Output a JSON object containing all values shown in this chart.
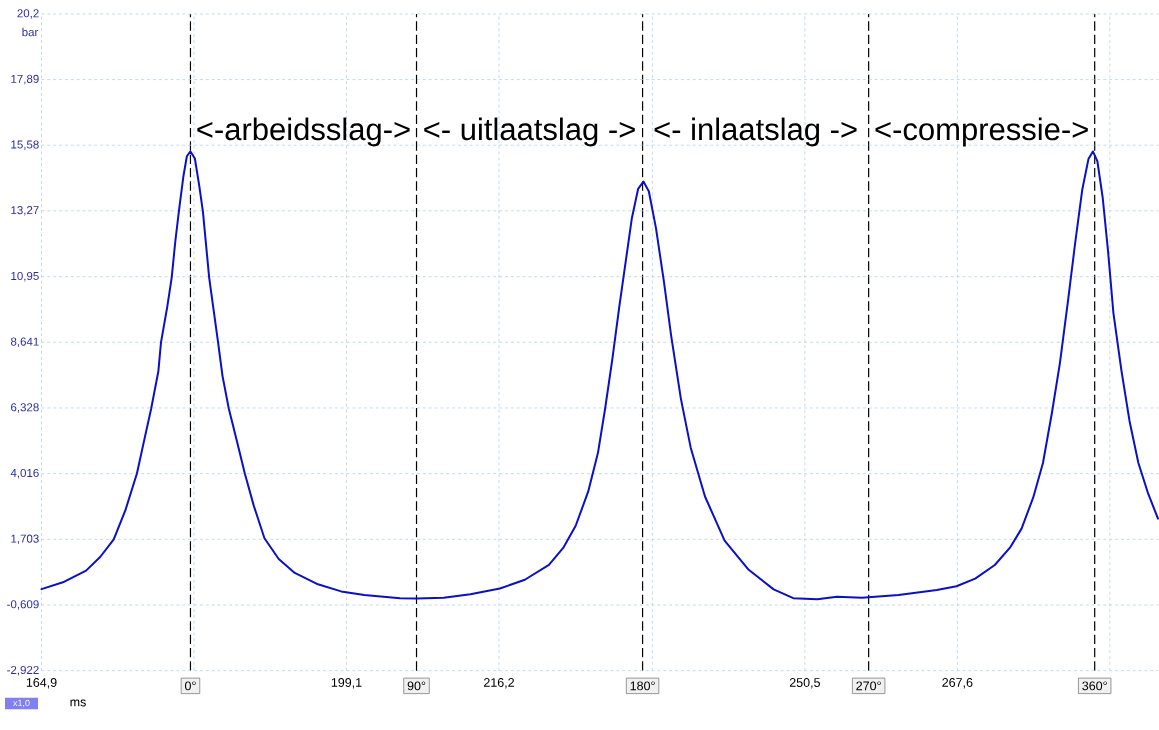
{
  "chart_data": {
    "type": "line",
    "xlabel": "ms",
    "ylabel": "bar",
    "x": [
      164.9,
      167.3,
      169.9,
      171.5,
      173.0,
      174.3,
      175.6,
      176.4,
      177.2,
      178.0,
      178.3,
      179.0,
      179.5,
      179.9,
      180.3,
      180.8,
      181.2,
      181.6,
      182.1,
      182.6,
      183.0,
      183.7,
      184.7,
      185.2,
      185.9,
      186.8,
      187.7,
      188.7,
      189.9,
      191.5,
      193.3,
      195.9,
      198.5,
      201.1,
      205.1,
      207.0,
      210.0,
      213.0,
      216.3,
      219.1,
      221.8,
      223.4,
      224.8,
      226.2,
      227.3,
      228.1,
      228.9,
      229.7,
      230.4,
      231.1,
      231.8,
      232.4,
      233.0,
      233.8,
      234.7,
      235.5,
      236.6,
      237.7,
      239.3,
      241.5,
      244.2,
      247.0,
      249.2,
      251.9,
      254.1,
      256.9,
      261.0,
      265.3,
      267.5,
      269.6,
      271.8,
      273.5,
      274.8,
      276.1,
      277.2,
      278.2,
      279.1,
      280.0,
      280.8,
      281.6,
      282.3,
      282.8,
      283.3,
      283.9,
      284.5,
      285.1,
      286.0,
      286.9,
      287.9,
      289.0,
      290.1
    ],
    "series": [
      {
        "color": "#0a10c8",
        "values": [
          -0.05,
          0.19,
          0.6,
          1.09,
          1.7,
          2.72,
          4.02,
          5.17,
          6.31,
          7.61,
          8.64,
          9.89,
          10.92,
          12.18,
          13.24,
          14.46,
          15.19,
          15.36,
          15.11,
          14.13,
          13.24,
          10.92,
          8.64,
          7.45,
          6.31,
          5.17,
          4.02,
          2.89,
          1.74,
          1.01,
          0.52,
          0.12,
          -0.13,
          -0.26,
          -0.37,
          -0.38,
          -0.35,
          -0.23,
          -0.03,
          0.28,
          0.8,
          1.4,
          2.18,
          3.38,
          4.75,
          6.3,
          8.02,
          9.91,
          11.46,
          13.01,
          14.04,
          14.3,
          13.96,
          12.67,
          10.77,
          8.88,
          6.65,
          4.93,
          3.21,
          1.66,
          0.63,
          -0.06,
          -0.37,
          -0.41,
          -0.32,
          -0.35,
          -0.26,
          -0.08,
          0.05,
          0.32,
          0.8,
          1.41,
          2.08,
          3.17,
          4.39,
          6.15,
          7.91,
          10.08,
          12.11,
          14.0,
          15.09,
          15.36,
          15.02,
          13.73,
          11.84,
          9.67,
          7.64,
          5.88,
          4.39,
          3.31,
          2.43
        ]
      }
    ],
    "xlim": [
      164.9,
      290.1
    ],
    "xticks": [
      {
        "value": 164.9,
        "label": "164,9"
      },
      {
        "value": 182.0,
        "label": null
      },
      {
        "value": 199.1,
        "label": "199,1"
      },
      {
        "value": 216.2,
        "label": "216,2"
      },
      {
        "value": 233.4,
        "label": null
      },
      {
        "value": 250.5,
        "label": "250,5"
      },
      {
        "value": 267.6,
        "label": "267,6"
      },
      {
        "value": 284.7,
        "label": null
      }
    ],
    "x2lim": [
      -59.3,
      385.2
    ],
    "x2ticks": [
      {
        "value": 0,
        "label": "0°"
      },
      {
        "value": 90,
        "label": "90°"
      },
      {
        "value": 180,
        "label": "180°"
      },
      {
        "value": 270,
        "label": "270°"
      },
      {
        "value": 360,
        "label": "360°"
      }
    ],
    "ylim": [
      -2.922,
      20.2
    ],
    "yticks": [
      {
        "value": -2.922,
        "label": "-2,922"
      },
      {
        "value": -0.609,
        "label": "-0,609"
      },
      {
        "value": 1.703,
        "label": "1,703"
      },
      {
        "value": 4.016,
        "label": "4,016"
      },
      {
        "value": 6.328,
        "label": "6,328"
      },
      {
        "value": 8.641,
        "label": "8,641"
      },
      {
        "value": 10.95,
        "label": "10,95"
      },
      {
        "value": 13.27,
        "label": "13,27"
      },
      {
        "value": 15.58,
        "label": "15,58"
      },
      {
        "value": 17.89,
        "label": "17,89"
      },
      {
        "value": 20.2,
        "label": "20,2"
      }
    ],
    "grid": true,
    "annotations": [
      "<-arbeidsslag->",
      "<- uitlaatslag ->",
      "<-  inlaatslag  ->",
      "<-compressie->",
      "x1,0"
    ]
  }
}
